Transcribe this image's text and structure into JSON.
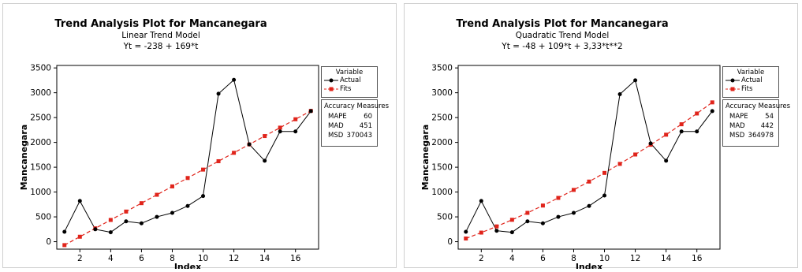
{
  "charts": [
    {
      "title": "Trend Analysis Plot for Mancanegara",
      "subtitle": "Linear Trend Model",
      "equation": "Yt = -238 + 169*t",
      "legend": {
        "title": "Variable",
        "actual_label": "Actual",
        "fits_label": "Fits"
      },
      "accuracy": {
        "title": "Accuracy Measures",
        "rows": [
          {
            "label": "MAPE",
            "value": "60"
          },
          {
            "label": "MAD",
            "value": "451"
          },
          {
            "label": "MSD",
            "value": "370043"
          }
        ]
      }
    },
    {
      "title": "Trend Analysis Plot for Mancanegara",
      "subtitle": "Quadratic Trend Model",
      "equation": "Yt = -48 + 109*t + 3,33*t**2",
      "legend": {
        "title": "Variable",
        "actual_label": "Actual",
        "fits_label": "Fits"
      },
      "accuracy": {
        "title": "Accuracy Measures",
        "rows": [
          {
            "label": "MAPE",
            "value": "54"
          },
          {
            "label": "MAD",
            "value": "442"
          },
          {
            "label": "MSD",
            "value": "364978"
          }
        ]
      }
    }
  ],
  "colors": {
    "actual": "#000000",
    "fits": "#e0241b",
    "axis": "#000000"
  },
  "chart_data": [
    {
      "type": "line",
      "title": "Trend Analysis Plot for Mancanegara",
      "subtitle": "Linear Trend Model",
      "xlabel": "Index",
      "ylabel": "Mancanegara",
      "x": [
        1,
        2,
        3,
        4,
        5,
        6,
        7,
        8,
        9,
        10,
        11,
        12,
        13,
        14,
        15,
        16,
        17
      ],
      "xticks": [
        2,
        4,
        6,
        8,
        10,
        12,
        14,
        16
      ],
      "yticks": [
        0,
        500,
        1000,
        1500,
        2000,
        2500,
        3000,
        3500
      ],
      "xlim": [
        0.5,
        17.5
      ],
      "ylim": [
        -150,
        3550
      ],
      "series": [
        {
          "name": "Actual",
          "values": [
            200,
            820,
            250,
            190,
            410,
            370,
            500,
            580,
            720,
            920,
            2980,
            3260,
            1960,
            1630,
            2220,
            2220,
            2630
          ]
        },
        {
          "name": "Fits",
          "values": [
            -69,
            100,
            269,
            438,
            607,
            776,
            945,
            1114,
            1283,
            1452,
            1621,
            1790,
            1959,
            2128,
            2297,
            2466,
            2635
          ]
        }
      ]
    },
    {
      "type": "line",
      "title": "Trend Analysis Plot for Mancanegara",
      "subtitle": "Quadratic Trend Model",
      "xlabel": "Index",
      "ylabel": "Mancanegara",
      "x": [
        1,
        2,
        3,
        4,
        5,
        6,
        7,
        8,
        9,
        10,
        11,
        12,
        13,
        14,
        15,
        16,
        17
      ],
      "xticks": [
        2,
        4,
        6,
        8,
        10,
        12,
        14,
        16
      ],
      "yticks": [
        0,
        500,
        1000,
        1500,
        2000,
        2500,
        3000,
        3500
      ],
      "xlim": [
        0.5,
        17.5
      ],
      "ylim": [
        -150,
        3550
      ],
      "series": [
        {
          "name": "Actual",
          "values": [
            200,
            820,
            220,
            190,
            410,
            370,
            500,
            580,
            720,
            930,
            2970,
            3250,
            1980,
            1630,
            2220,
            2220,
            2630
          ]
        },
        {
          "name": "Fits",
          "values": [
            64,
            183,
            308,
            441,
            581,
            728,
            882,
            1043,
            1211,
            1385,
            1567,
            1756,
            1952,
            2155,
            2365,
            2582,
            2806
          ]
        }
      ]
    }
  ]
}
